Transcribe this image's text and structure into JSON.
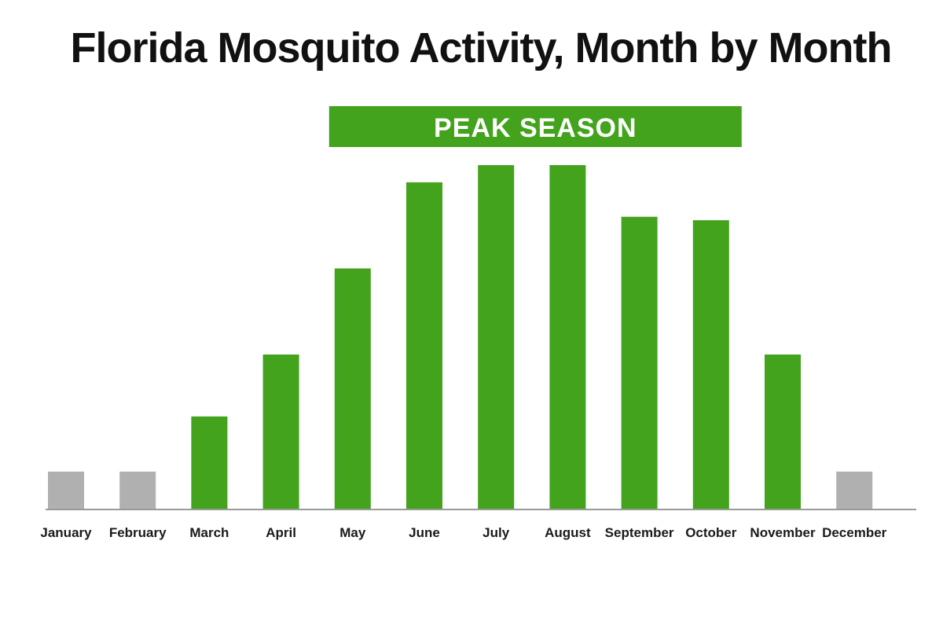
{
  "chart_data": {
    "type": "bar",
    "title": "Florida Mosquito Activity, Month by Month",
    "xlabel": "",
    "ylabel": "",
    "ylim": [
      0,
      100
    ],
    "grid": false,
    "categories": [
      "January",
      "February",
      "March",
      "April",
      "May",
      "June",
      "July",
      "August",
      "September",
      "October",
      "November",
      "December"
    ],
    "values": [
      11,
      11,
      27,
      45,
      70,
      95,
      100,
      100,
      85,
      84,
      45,
      11
    ],
    "bar_status": [
      "off-season",
      "off-season",
      "active",
      "active",
      "active",
      "active",
      "active",
      "active",
      "active",
      "active",
      "active",
      "off-season"
    ],
    "annotation": {
      "text": "PEAK SEASON",
      "from_category": "May",
      "to_category": "October"
    },
    "colors": {
      "active": "#43a31c",
      "off-season": "#b0b0b0",
      "annotation_bg": "#43a31c",
      "annotation_text": "#ffffff",
      "axis": "#9a9a9a"
    }
  }
}
